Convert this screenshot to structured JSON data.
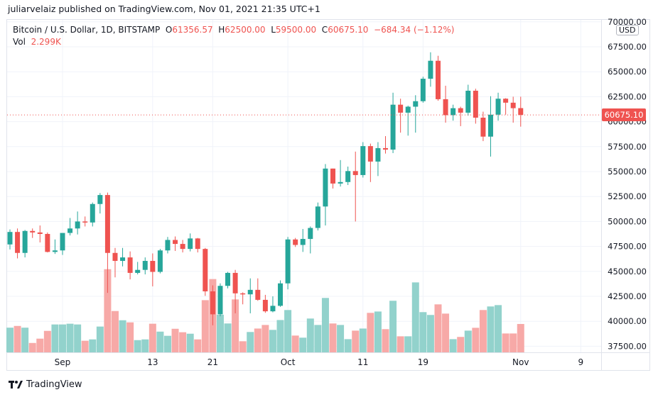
{
  "header": {
    "published": "juliarvelaiz published on TradingView.com, Nov 01, 2021 21:35 UTC+1"
  },
  "legend": {
    "symbol": "Bitcoin / U.S. Dollar, 1D, BITSTAMP",
    "o_label": "O",
    "o": "61356.57",
    "h_label": "H",
    "h": "62500.00",
    "l_label": "L",
    "l": "59500.00",
    "c_label": "C",
    "c": "60675.10",
    "change": "−684.34 (−1.12%)",
    "vol_label": "Vol",
    "vol": "2.299K"
  },
  "currency": "USD",
  "last_price_label": "60675.10",
  "footer": {
    "brand": "TradingView"
  },
  "colors": {
    "up": "#26a69a",
    "down": "#ef5350",
    "up_volume": "#92d2cc",
    "down_volume": "#f7a9a7",
    "grid": "#f0f3fa"
  },
  "chart_data": {
    "type": "candlestick",
    "title": "Bitcoin / U.S. Dollar, 1D, BITSTAMP",
    "ylim": [
      36900,
      70500
    ],
    "grid": true,
    "y_ticks": [
      "37500.00",
      "40000.00",
      "42500.00",
      "45000.00",
      "47500.00",
      "50000.00",
      "52500.00",
      "55000.00",
      "57500.00",
      "60000.00",
      "62500.00",
      "65000.00",
      "67500.00",
      "70000.00"
    ],
    "x_ticks": [
      {
        "label": "Sep",
        "date": "2021-09-01"
      },
      {
        "label": "13",
        "date": "2021-09-13"
      },
      {
        "label": "21",
        "date": "2021-09-21"
      },
      {
        "label": "Oct",
        "date": "2021-10-01"
      },
      {
        "label": "11",
        "date": "2021-10-11"
      },
      {
        "label": "19",
        "date": "2021-10-19"
      },
      {
        "label": "Nov",
        "date": "2021-11-01"
      },
      {
        "label": "9",
        "date": "2021-11-09"
      }
    ],
    "x_range": [
      "2021-08-25",
      "2021-11-11"
    ],
    "last_price": 60675.1,
    "volume_unit": "K",
    "candles": [
      [
        "2021-08-25",
        47700,
        49200,
        47200,
        48950,
        2.0
      ],
      [
        "2021-08-26",
        48950,
        49300,
        46300,
        46850,
        2.14
      ],
      [
        "2021-08-27",
        46850,
        49150,
        46400,
        49050,
        2.0
      ],
      [
        "2021-08-28",
        49050,
        49300,
        48350,
        48900,
        0.76
      ],
      [
        "2021-08-29",
        48900,
        49600,
        47900,
        48750,
        1.11
      ],
      [
        "2021-08-30",
        48750,
        48900,
        46900,
        46950,
        1.74
      ],
      [
        "2021-08-31",
        46950,
        48200,
        46750,
        47100,
        2.26
      ],
      [
        "2021-09-01",
        47100,
        48800,
        46650,
        48850,
        2.26
      ],
      [
        "2021-09-02",
        48850,
        50350,
        48600,
        49300,
        2.32
      ],
      [
        "2021-09-03",
        49300,
        51000,
        48700,
        50000,
        2.26
      ],
      [
        "2021-09-04",
        50000,
        50500,
        49500,
        49900,
        0.94
      ],
      [
        "2021-09-05",
        49900,
        51900,
        49500,
        51750,
        1.05
      ],
      [
        "2021-09-06",
        51750,
        52850,
        50800,
        52650,
        2.09
      ],
      [
        "2021-09-07",
        52650,
        52900,
        42850,
        46850,
        6.74
      ],
      [
        "2021-09-08",
        46850,
        47350,
        44400,
        46050,
        3.35
      ],
      [
        "2021-09-09",
        46050,
        47350,
        45500,
        46400,
        2.6
      ],
      [
        "2021-09-10",
        46400,
        47000,
        44200,
        44850,
        2.43
      ],
      [
        "2021-09-11",
        44850,
        45950,
        44700,
        45150,
        0.99
      ],
      [
        "2021-09-12",
        45150,
        46400,
        44700,
        46050,
        1.05
      ],
      [
        "2021-09-13",
        46050,
        46800,
        43500,
        44950,
        2.32
      ],
      [
        "2021-09-14",
        44950,
        47250,
        44800,
        47100,
        1.68
      ],
      [
        "2021-09-15",
        47100,
        48450,
        46800,
        48150,
        1.34
      ],
      [
        "2021-09-16",
        48150,
        48500,
        47050,
        47750,
        1.91
      ],
      [
        "2021-09-17",
        47750,
        48150,
        46900,
        47250,
        1.63
      ],
      [
        "2021-09-18",
        47250,
        48800,
        47000,
        48300,
        1.51
      ],
      [
        "2021-09-19",
        48300,
        48350,
        46900,
        47250,
        1.05
      ],
      [
        "2021-09-20",
        47250,
        47350,
        42550,
        43000,
        4.23
      ],
      [
        "2021-09-21",
        43000,
        43600,
        39600,
        40700,
        5.94
      ],
      [
        "2021-09-22",
        40700,
        43800,
        40500,
        43550,
        3.05
      ],
      [
        "2021-09-23",
        43550,
        44950,
        43300,
        44850,
        2.34
      ],
      [
        "2021-09-24",
        44850,
        45150,
        40800,
        42800,
        4.29
      ],
      [
        "2021-09-25",
        42800,
        42900,
        41700,
        42700,
        0.9
      ],
      [
        "2021-09-26",
        42700,
        44300,
        40800,
        43150,
        1.65
      ],
      [
        "2021-09-27",
        43150,
        44300,
        42050,
        42150,
        1.93
      ],
      [
        "2021-09-28",
        42150,
        42650,
        40850,
        41000,
        2.22
      ],
      [
        "2021-09-29",
        41000,
        42500,
        40900,
        41550,
        1.82
      ],
      [
        "2021-09-30",
        41550,
        44100,
        41450,
        43800,
        2.62
      ],
      [
        "2021-10-01",
        43800,
        48450,
        43200,
        48200,
        3.43
      ],
      [
        "2021-10-02",
        48200,
        48350,
        47450,
        47650,
        1.36
      ],
      [
        "2021-10-03",
        47650,
        49250,
        46950,
        48250,
        1.19
      ],
      [
        "2021-10-04",
        48250,
        49500,
        46800,
        49350,
        2.74
      ],
      [
        "2021-10-05",
        49350,
        51900,
        49100,
        51500,
        2.22
      ],
      [
        "2021-10-06",
        51500,
        55750,
        49600,
        55300,
        4.41
      ],
      [
        "2021-10-07",
        55300,
        55300,
        53300,
        53800,
        2.34
      ],
      [
        "2021-10-08",
        53800,
        56150,
        53500,
        53950,
        2.22
      ],
      [
        "2021-10-09",
        53950,
        55500,
        53650,
        55050,
        1.07
      ],
      [
        "2021-10-10",
        55050,
        57000,
        50000,
        54650,
        1.76
      ],
      [
        "2021-10-11",
        54650,
        57950,
        54400,
        57550,
        1.93
      ],
      [
        "2021-10-12",
        57550,
        57800,
        53950,
        56000,
        3.2
      ],
      [
        "2021-10-13",
        56000,
        57950,
        54550,
        57350,
        3.31
      ],
      [
        "2021-10-14",
        57350,
        58550,
        56800,
        57200,
        1.88
      ],
      [
        "2021-10-15",
        57200,
        62900,
        56850,
        61700,
        4.18
      ],
      [
        "2021-10-16",
        61700,
        62300,
        58900,
        60900,
        1.3
      ],
      [
        "2021-10-17",
        60900,
        61600,
        58600,
        61500,
        1.3
      ],
      [
        "2021-10-18",
        61500,
        62650,
        58900,
        62050,
        5.67
      ],
      [
        "2021-10-19",
        62050,
        64500,
        61900,
        64300,
        3.26
      ],
      [
        "2021-10-20",
        64300,
        66950,
        63500,
        66100,
        3.03
      ],
      [
        "2021-10-21",
        66100,
        66600,
        62100,
        62250,
        3.89
      ],
      [
        "2021-10-22",
        62250,
        63600,
        59900,
        60650,
        3.14
      ],
      [
        "2021-10-23",
        60650,
        61700,
        60100,
        61350,
        1.07
      ],
      [
        "2021-10-24",
        61350,
        61500,
        59550,
        60900,
        1.25
      ],
      [
        "2021-10-25",
        60900,
        63700,
        60600,
        63100,
        1.76
      ],
      [
        "2021-10-26",
        63100,
        63300,
        59800,
        60400,
        1.99
      ],
      [
        "2021-10-27",
        60400,
        61000,
        58050,
        58500,
        3.43
      ],
      [
        "2021-10-28",
        58500,
        62550,
        56500,
        60700,
        3.72
      ],
      [
        "2021-10-29",
        60700,
        62900,
        60100,
        62300,
        3.83
      ],
      [
        "2021-10-30",
        62300,
        62350,
        60700,
        61900,
        1.53
      ],
      [
        "2021-10-31",
        61900,
        62500,
        59900,
        61350,
        1.53
      ],
      [
        "2021-11-01",
        61356.57,
        62500,
        59500,
        60675.1,
        2.299
      ]
    ]
  }
}
